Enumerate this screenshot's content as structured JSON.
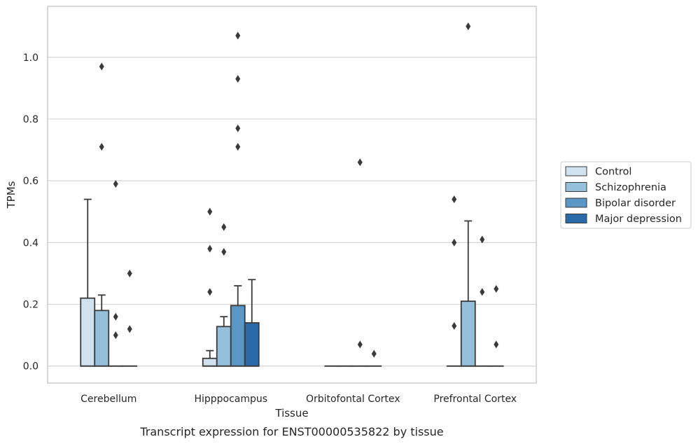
{
  "chart_data": {
    "type": "boxplot",
    "title": "",
    "caption": "Transcript expression for ENST00000535822 by tissue",
    "xlabel": "Tissue",
    "ylabel": "TPMs",
    "ylim": [
      -0.055,
      1.165
    ],
    "yticks": [
      0.0,
      0.2,
      0.4,
      0.6,
      0.8,
      1.0
    ],
    "ytick_labels": [
      "0.0",
      "0.2",
      "0.4",
      "0.6",
      "0.8",
      "1.0"
    ],
    "grid": "horizontal",
    "legend_position": "right",
    "categories": [
      "Cerebellum",
      "Hipppocampus",
      "Orbitofontal Cortex",
      "Prefrontal Cortex"
    ],
    "series": [
      {
        "name": "Control",
        "color": "#d0e1f0",
        "boxes": [
          {
            "q1": 0.0,
            "median": 0.0,
            "q3": 0.22,
            "whisker_low": 0.0,
            "whisker_high": 0.54,
            "outliers": []
          },
          {
            "q1": 0.0,
            "median": 0.0,
            "q3": 0.025,
            "whisker_low": 0.0,
            "whisker_high": 0.05,
            "outliers": [
              0.24,
              0.38,
              0.5
            ]
          },
          {
            "q1": 0.0,
            "median": 0.0,
            "q3": 0.0,
            "whisker_low": 0.0,
            "whisker_high": 0.0,
            "outliers": []
          },
          {
            "q1": 0.0,
            "median": 0.0,
            "q3": 0.0,
            "whisker_low": 0.0,
            "whisker_high": 0.0,
            "outliers": [
              0.13,
              0.4,
              0.54
            ]
          }
        ]
      },
      {
        "name": "Schizophrenia",
        "color": "#95c0db",
        "boxes": [
          {
            "q1": 0.0,
            "median": 0.0,
            "q3": 0.18,
            "whisker_low": 0.0,
            "whisker_high": 0.23,
            "outliers": [
              0.71,
              0.97
            ]
          },
          {
            "q1": 0.0,
            "median": 0.0,
            "q3": 0.128,
            "whisker_low": 0.0,
            "whisker_high": 0.16,
            "outliers": [
              0.37,
              0.45
            ]
          },
          {
            "q1": 0.0,
            "median": 0.0,
            "q3": 0.0,
            "whisker_low": 0.0,
            "whisker_high": 0.0,
            "outliers": []
          },
          {
            "q1": 0.0,
            "median": 0.0,
            "q3": 0.21,
            "whisker_low": 0.0,
            "whisker_high": 0.47,
            "outliers": [
              1.1
            ]
          }
        ]
      },
      {
        "name": "Bipolar disorder",
        "color": "#5a97c6",
        "boxes": [
          {
            "q1": 0.0,
            "median": 0.0,
            "q3": 0.0,
            "whisker_low": 0.0,
            "whisker_high": 0.0,
            "outliers": [
              0.1,
              0.16,
              0.59
            ]
          },
          {
            "q1": 0.0,
            "median": 0.0,
            "q3": 0.196,
            "whisker_low": 0.0,
            "whisker_high": 0.26,
            "outliers": [
              0.71,
              0.77,
              0.93,
              1.07
            ]
          },
          {
            "q1": 0.0,
            "median": 0.0,
            "q3": 0.0,
            "whisker_low": 0.0,
            "whisker_high": 0.0,
            "outliers": [
              0.07,
              0.66
            ]
          },
          {
            "q1": 0.0,
            "median": 0.0,
            "q3": 0.0,
            "whisker_low": 0.0,
            "whisker_high": 0.0,
            "outliers": [
              0.24,
              0.41
            ]
          }
        ]
      },
      {
        "name": "Major depression",
        "color": "#2a6aa9",
        "boxes": [
          {
            "q1": 0.0,
            "median": 0.0,
            "q3": 0.0,
            "whisker_low": 0.0,
            "whisker_high": 0.0,
            "outliers": [
              0.12,
              0.3
            ]
          },
          {
            "q1": 0.0,
            "median": 0.0,
            "q3": 0.14,
            "whisker_low": 0.0,
            "whisker_high": 0.28,
            "outliers": []
          },
          {
            "q1": 0.0,
            "median": 0.0,
            "q3": 0.0,
            "whisker_low": 0.0,
            "whisker_high": 0.0,
            "outliers": [
              0.04
            ]
          },
          {
            "q1": 0.0,
            "median": 0.0,
            "q3": 0.0,
            "whisker_low": 0.0,
            "whisker_high": 0.0,
            "outliers": [
              0.07,
              0.25
            ]
          }
        ]
      }
    ]
  }
}
